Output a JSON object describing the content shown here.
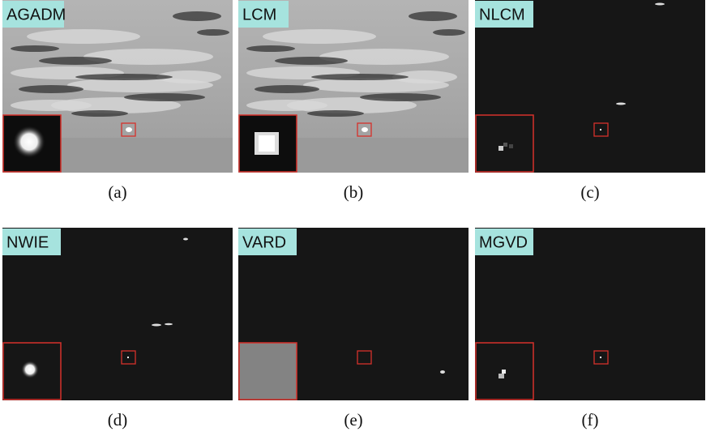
{
  "panels": [
    {
      "label": "AGADM",
      "caption": "(a)"
    },
    {
      "label": "LCM",
      "caption": "(b)"
    },
    {
      "label": "NLCM",
      "caption": "(c)"
    },
    {
      "label": "NWIE",
      "caption": "(d)"
    },
    {
      "label": "VARD",
      "caption": "(e)"
    },
    {
      "label": "MGVD",
      "caption": "(f)"
    }
  ]
}
